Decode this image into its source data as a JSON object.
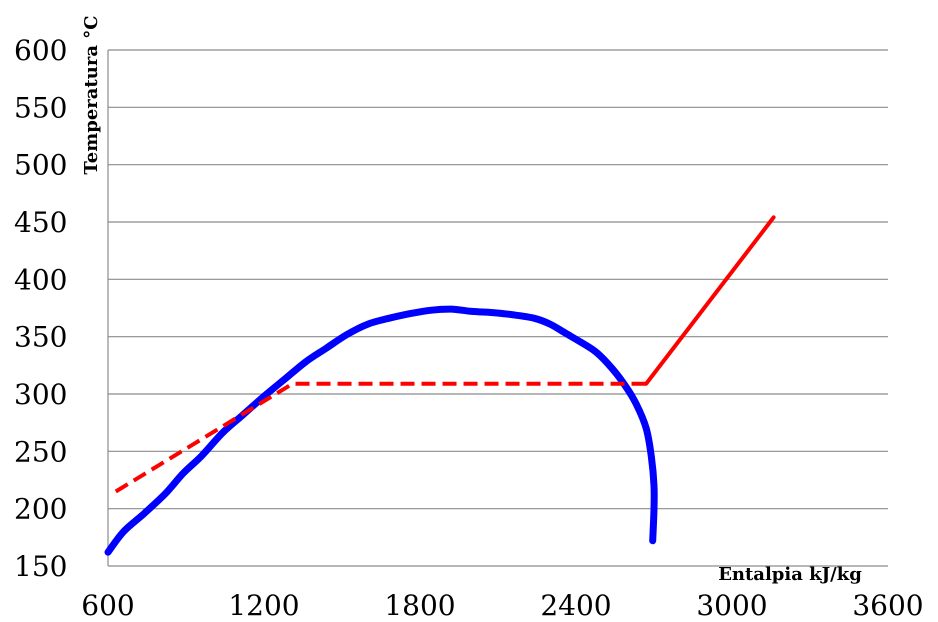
{
  "chart_data": {
    "type": "line",
    "title": "",
    "xlabel": "Entalpia kJ/kg",
    "ylabel": "Temperatura °C",
    "xlim": [
      600,
      3600
    ],
    "ylim": [
      150,
      600
    ],
    "x_ticks": [
      600,
      1200,
      1800,
      2400,
      3000,
      3600
    ],
    "y_ticks": [
      150,
      200,
      250,
      300,
      350,
      400,
      450,
      500,
      550,
      600
    ],
    "grid": "horizontal",
    "legend": "none",
    "series": [
      {
        "color": "#0000ff",
        "style": "solid",
        "points": [
          [
            600,
            162
          ],
          [
            660,
            180
          ],
          [
            740,
            196
          ],
          [
            820,
            213
          ],
          [
            890,
            231
          ],
          [
            960,
            246
          ],
          [
            1040,
            266
          ],
          [
            1120,
            282
          ],
          [
            1200,
            298
          ],
          [
            1280,
            313
          ],
          [
            1360,
            328
          ],
          [
            1440,
            340
          ],
          [
            1520,
            352
          ],
          [
            1600,
            361
          ],
          [
            1680,
            366
          ],
          [
            1760,
            370
          ],
          [
            1840,
            373
          ],
          [
            1920,
            374
          ],
          [
            2000,
            372
          ],
          [
            2080,
            371
          ],
          [
            2160,
            369
          ],
          [
            2240,
            366
          ],
          [
            2300,
            361
          ],
          [
            2360,
            353
          ],
          [
            2420,
            345
          ],
          [
            2480,
            336
          ],
          [
            2540,
            322
          ],
          [
            2590,
            307
          ],
          [
            2630,
            292
          ],
          [
            2670,
            270
          ],
          [
            2690,
            245
          ],
          [
            2700,
            220
          ],
          [
            2700,
            200
          ],
          [
            2695,
            172
          ]
        ]
      },
      {
        "color": "#ff0000",
        "style": "dashed",
        "points": [
          [
            630,
            215
          ],
          [
            1310,
            309
          ],
          [
            2670,
            309
          ]
        ]
      },
      {
        "color": "#ff0000",
        "style": "solid",
        "points": [
          [
            2670,
            309
          ],
          [
            3160,
            454
          ]
        ]
      }
    ]
  }
}
